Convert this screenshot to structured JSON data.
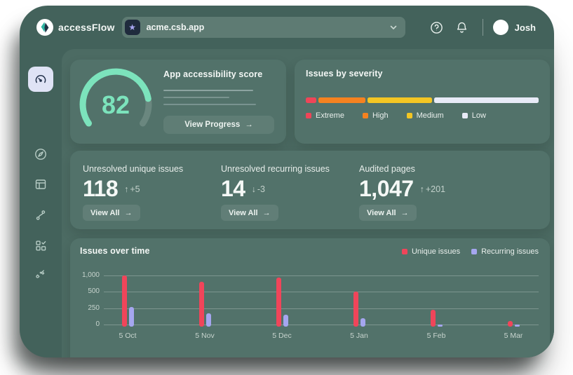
{
  "topbar": {
    "brand": "accessFlow",
    "project_selector": {
      "value": "acme.csb.app",
      "icon": "star-icon"
    },
    "user_name": "Josh"
  },
  "sidebar": {
    "items": [
      {
        "name": "dashboard",
        "icon": "gauge-icon",
        "active": true
      },
      {
        "name": "explore",
        "icon": "compass-icon",
        "active": false
      },
      {
        "name": "pages",
        "icon": "layout-icon",
        "active": false
      },
      {
        "name": "flows",
        "icon": "flow-path-icon",
        "active": false
      },
      {
        "name": "audits",
        "icon": "grid-check-icon",
        "active": false
      },
      {
        "name": "integrations",
        "icon": "plug-icon",
        "active": false
      }
    ]
  },
  "score_card": {
    "title": "App accessibility score",
    "score": "82",
    "score_max": 100,
    "gauge_color": "#7CE3BC",
    "button_label": "View Progress",
    "button_arrow": "→"
  },
  "severity_card": {
    "title": "Issues by severity",
    "segments": [
      {
        "label": "Extreme",
        "color": "#EE4558",
        "pct": 4.5
      },
      {
        "label": "High",
        "color": "#F58220",
        "pct": 21
      },
      {
        "label": "Medium",
        "color": "#F3C623",
        "pct": 28.5
      },
      {
        "label": "Low",
        "color": "#E8EBF7",
        "pct": 46
      }
    ]
  },
  "stats_card": {
    "items": [
      {
        "label": "Unresolved unique issues",
        "value": "118",
        "delta_arrow": "↑",
        "delta": "+5",
        "button_label": "View All",
        "button_arrow": "→"
      },
      {
        "label": "Unresolved recurring issues",
        "value": "14",
        "delta_arrow": "↓",
        "delta": "-3",
        "button_label": "View All",
        "button_arrow": "→"
      },
      {
        "label": "Audited pages",
        "value": "1,047",
        "delta_arrow": "↑",
        "delta": "+201",
        "button_label": "View All",
        "button_arrow": "→"
      }
    ]
  },
  "chart_card": {
    "title": "Issues over time"
  },
  "chart_data": {
    "type": "bar",
    "title": "Issues over time",
    "categories": [
      "5 Oct",
      "5 Nov",
      "5 Dec",
      "5 Jan",
      "5 Feb",
      "5 Mar"
    ],
    "series": [
      {
        "name": "Unique issues",
        "color": "#F0455A",
        "values": [
          1060,
          880,
          1010,
          560,
          260,
          85
        ]
      },
      {
        "name": "Recurring issues",
        "color": "#A5A6EF",
        "values": [
          300,
          210,
          180,
          125,
          35,
          10
        ]
      }
    ],
    "yticks": [
      0,
      250,
      500,
      1000
    ],
    "ylabels": [
      "0",
      "250",
      "500",
      "1,000"
    ],
    "xlabel": "",
    "ylabel": "",
    "grid": true,
    "legend_position": "top-right"
  }
}
